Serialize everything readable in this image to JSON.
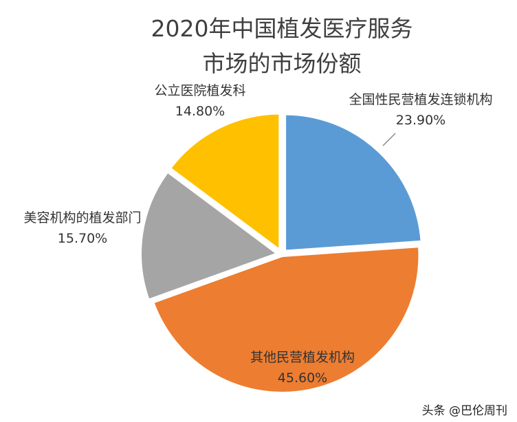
{
  "chart_data": {
    "type": "pie",
    "title_lines": [
      "2020年中国植发医疗服务",
      "市场的市场份额"
    ],
    "slices": [
      {
        "label": "全国性民营植发连锁机构",
        "value": 23.9,
        "value_text": "23.90%",
        "color": "#5b9bd5"
      },
      {
        "label": "其他民营植发机构",
        "value": 45.6,
        "value_text": "45.60%",
        "color": "#ed7d31"
      },
      {
        "label": "美容机构的植发部门",
        "value": 15.7,
        "value_text": "15.70%",
        "color": "#a5a5a5"
      },
      {
        "label": "公立医院植发科",
        "value": 14.8,
        "value_text": "14.80%",
        "color": "#ffc000"
      }
    ],
    "legend": "none"
  },
  "watermark": "头条 @巴伦周刊"
}
